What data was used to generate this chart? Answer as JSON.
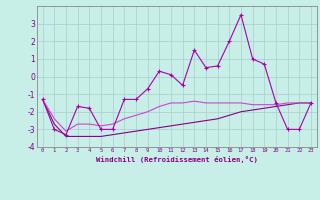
{
  "xlabel": "Windchill (Refroidissement éolien,°C)",
  "x": [
    0,
    1,
    2,
    3,
    4,
    5,
    6,
    7,
    8,
    9,
    10,
    11,
    12,
    13,
    14,
    15,
    16,
    17,
    18,
    19,
    20,
    21,
    22,
    23
  ],
  "line1": [
    -1.3,
    -3.0,
    -3.3,
    -1.7,
    -1.8,
    -3.0,
    -3.0,
    -1.3,
    -1.3,
    -0.7,
    0.3,
    0.1,
    -0.5,
    1.5,
    0.5,
    0.6,
    2.0,
    3.5,
    1.0,
    0.7,
    -1.5,
    -3.0,
    -3.0,
    -1.5
  ],
  "line2": [
    -1.3,
    -2.7,
    -3.4,
    -3.4,
    -3.4,
    -3.4,
    -3.3,
    -3.2,
    -3.1,
    -3.0,
    -2.9,
    -2.8,
    -2.7,
    -2.6,
    -2.5,
    -2.4,
    -2.2,
    -2.0,
    -1.9,
    -1.8,
    -1.7,
    -1.6,
    -1.5,
    -1.5
  ],
  "line3": [
    -1.3,
    -2.4,
    -3.1,
    -2.7,
    -2.7,
    -2.8,
    -2.7,
    -2.4,
    -2.2,
    -2.0,
    -1.7,
    -1.5,
    -1.5,
    -1.4,
    -1.5,
    -1.5,
    -1.5,
    -1.5,
    -1.6,
    -1.6,
    -1.6,
    -1.5,
    -1.5,
    -1.5
  ],
  "line1_color": "#AA00AA",
  "line2_color": "#880088",
  "line3_color": "#CC44CC",
  "background_color": "#C8EEE8",
  "grid_color": "#AACCCC",
  "tick_color": "#880088",
  "label_color": "#880088",
  "ylim": [
    -4,
    4
  ],
  "yticks": [
    -4,
    -3,
    -2,
    -1,
    0,
    1,
    2,
    3
  ],
  "xlim": [
    -0.5,
    23.5
  ]
}
